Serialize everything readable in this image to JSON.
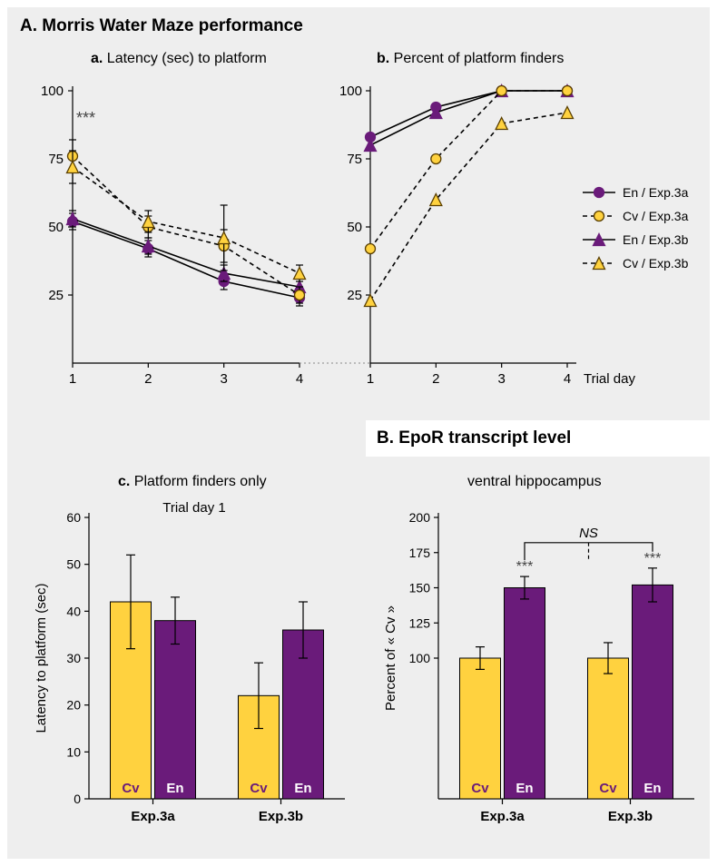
{
  "colors": {
    "bg_panel": "#eeeeee",
    "white": "#ffffff",
    "black": "#000000",
    "purple": "#6a1b7a",
    "yellow_fill": "#ffd23f",
    "yellow_stroke": "#5a3f00"
  },
  "fonts": {
    "title_size": 19,
    "sub_size": 16,
    "tick_size": 13,
    "legend_size": 14,
    "axis_label_size": 14
  },
  "panelA": {
    "title": "A. Morris Water Maze performance",
    "a": {
      "title_prefix": "a.",
      "title": "Latency (sec) to platform",
      "x": [
        1,
        2,
        3,
        4
      ],
      "ylim": [
        0,
        100
      ],
      "yticks": [
        25,
        50,
        75,
        100
      ],
      "series": {
        "En_3a": {
          "marker": "circle",
          "fill": "#6a1b7a",
          "stroke": "#6a1b7a",
          "dash": "none",
          "y": [
            52,
            42,
            30,
            24
          ],
          "err": [
            3,
            3,
            3,
            3
          ]
        },
        "Cv_3a": {
          "marker": "circle",
          "fill": "#ffd23f",
          "stroke": "#5a3f00",
          "dash": "5,4",
          "y": [
            76,
            50,
            43,
            25
          ],
          "err": [
            6,
            4,
            6,
            3
          ]
        },
        "En_3b": {
          "marker": "triangle",
          "fill": "#6a1b7a",
          "stroke": "#6a1b7a",
          "dash": "none",
          "y": [
            53,
            43,
            33,
            28
          ],
          "err": [
            3,
            3,
            3,
            3
          ]
        },
        "Cv_3b": {
          "marker": "triangle",
          "fill": "#ffd23f",
          "stroke": "#5a3f00",
          "dash": "5,4",
          "y": [
            72,
            52,
            46,
            33
          ],
          "err": [
            6,
            4,
            12,
            3
          ]
        }
      },
      "sig": "***"
    },
    "b": {
      "title_prefix": "b.",
      "title": "Percent of platform finders",
      "x": [
        1,
        2,
        3,
        4
      ],
      "ylim": [
        0,
        100
      ],
      "yticks": [
        25,
        50,
        75,
        100
      ],
      "xlabel": "Trial day",
      "series": {
        "En_3a": {
          "marker": "circle",
          "fill": "#6a1b7a",
          "stroke": "#6a1b7a",
          "dash": "none",
          "y": [
            83,
            94,
            100,
            100
          ]
        },
        "Cv_3a": {
          "marker": "circle",
          "fill": "#ffd23f",
          "stroke": "#5a3f00",
          "dash": "5,4",
          "y": [
            42,
            75,
            100,
            100
          ]
        },
        "En_3b": {
          "marker": "triangle",
          "fill": "#6a1b7a",
          "stroke": "#6a1b7a",
          "dash": "none",
          "y": [
            80,
            92,
            100,
            100
          ]
        },
        "Cv_3b": {
          "marker": "triangle",
          "fill": "#ffd23f",
          "stroke": "#5a3f00",
          "dash": "5,4",
          "y": [
            23,
            60,
            88,
            92
          ]
        }
      }
    },
    "legend": {
      "items": [
        {
          "marker": "circle",
          "fill": "#6a1b7a",
          "stroke": "#6a1b7a",
          "dash": "none",
          "label": "En / Exp.3a"
        },
        {
          "marker": "circle",
          "fill": "#ffd23f",
          "stroke": "#5a3f00",
          "dash": "5,4",
          "label": "Cv / Exp.3a"
        },
        {
          "marker": "triangle",
          "fill": "#6a1b7a",
          "stroke": "#6a1b7a",
          "dash": "none",
          "label": "En / Exp.3b"
        },
        {
          "marker": "triangle",
          "fill": "#ffd23f",
          "stroke": "#5a3f00",
          "dash": "5,4",
          "label": "Cv / Exp.3b"
        }
      ]
    },
    "c": {
      "title_prefix": "c.",
      "title": "Platform finders only",
      "subtitle": "Trial day 1",
      "ylabel": "Latency to platform (sec)",
      "ylim": [
        0,
        60
      ],
      "yticks": [
        0,
        10,
        20,
        30,
        40,
        50,
        60
      ],
      "groups": [
        "Exp.3a",
        "Exp.3b"
      ],
      "bars": [
        {
          "group": 0,
          "label": "Cv",
          "color": "#ffd23f",
          "y": 42,
          "err": 10,
          "text_color": "#6a1b7a"
        },
        {
          "group": 0,
          "label": "En",
          "color": "#6a1b7a",
          "y": 38,
          "err": 5,
          "text_color": "#ffffff"
        },
        {
          "group": 1,
          "label": "Cv",
          "color": "#ffd23f",
          "y": 22,
          "err": 7,
          "text_color": "#6a1b7a"
        },
        {
          "group": 1,
          "label": "En",
          "color": "#6a1b7a",
          "y": 36,
          "err": 6,
          "text_color": "#ffffff"
        }
      ],
      "bar_width": 0.4
    }
  },
  "panelB": {
    "title": "B. EpoR transcript level",
    "subtitle": "ventral hippocampus",
    "ylabel": "Percent of « Cv »",
    "ylim": [
      0,
      200
    ],
    "yticks": [
      100,
      125,
      150,
      175,
      200
    ],
    "groups": [
      "Exp.3a",
      "Exp.3b"
    ],
    "bars": [
      {
        "group": 0,
        "label": "Cv",
        "color": "#ffd23f",
        "y": 100,
        "err": 8,
        "text_color": "#6a1b7a",
        "sig": ""
      },
      {
        "group": 0,
        "label": "En",
        "color": "#6a1b7a",
        "y": 150,
        "err": 8,
        "text_color": "#ffffff",
        "sig": "***"
      },
      {
        "group": 1,
        "label": "Cv",
        "color": "#ffd23f",
        "y": 100,
        "err": 11,
        "text_color": "#6a1b7a",
        "sig": ""
      },
      {
        "group": 1,
        "label": "En",
        "color": "#6a1b7a",
        "y": 152,
        "err": 12,
        "text_color": "#ffffff",
        "sig": "***"
      }
    ],
    "ns_label": "NS",
    "bar_width": 0.4
  }
}
